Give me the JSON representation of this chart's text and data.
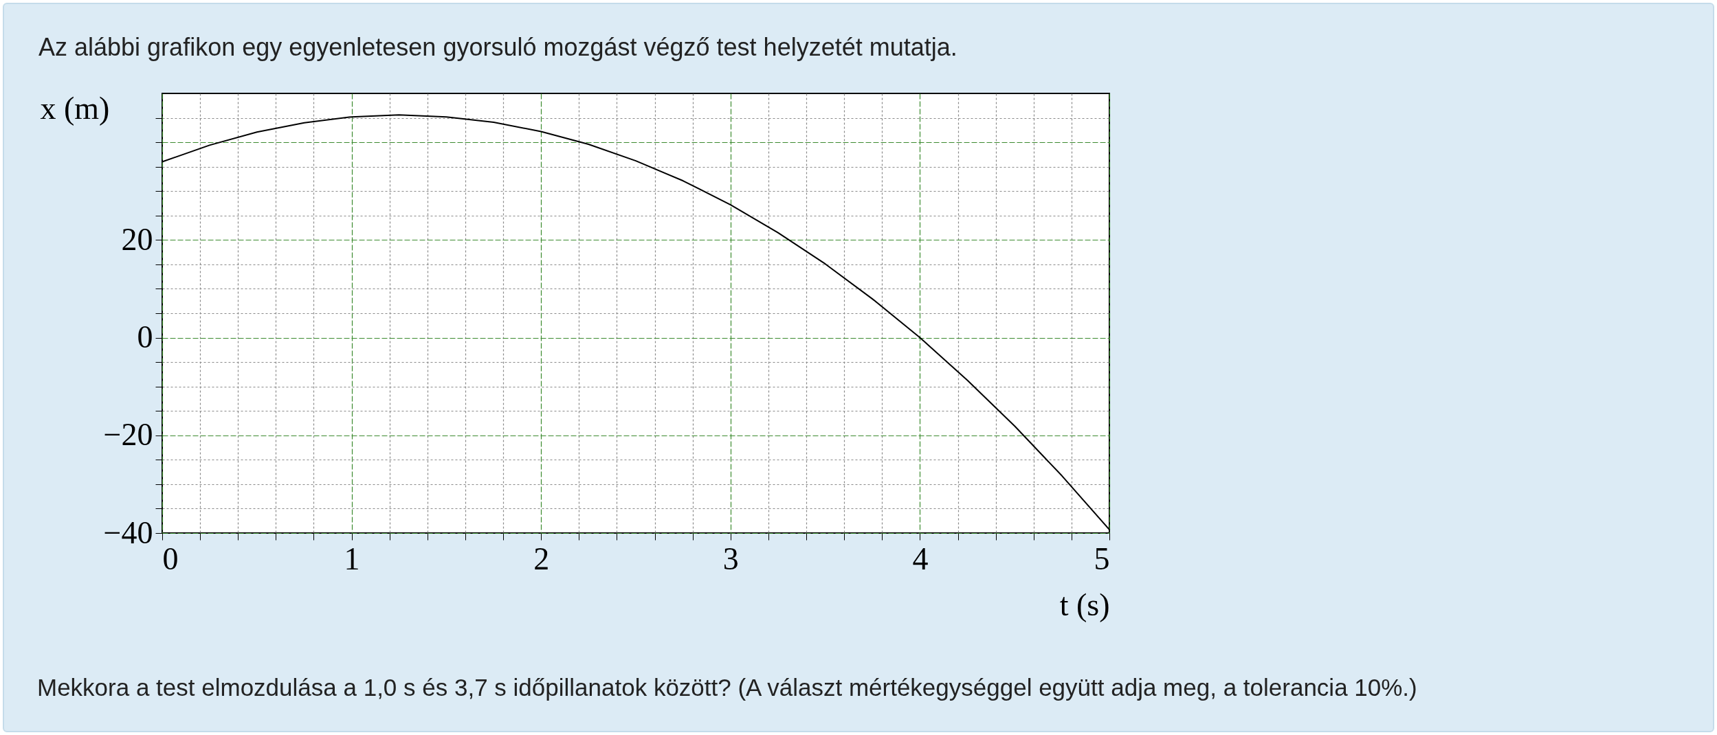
{
  "chart_data": {
    "type": "line",
    "title": "Az alábbi grafikon egy egyenletesen gyorsuló mozgást végző test helyzetét mutatja.",
    "xlabel": "t (s)",
    "ylabel": "x (m)",
    "annotations": [
      "Mekkora a test elmozdulása a 1,0 s és 3,7 s időpillanatok között? (A választ mértékegységgel együtt adja meg, a tolerancia 10%.)"
    ],
    "x": [
      0,
      0.25,
      0.5,
      0.75,
      1,
      1.25,
      1.5,
      1.75,
      2,
      2.25,
      2.5,
      2.75,
      3,
      3.25,
      3.5,
      3.75,
      4,
      4.25,
      4.5,
      4.75,
      5
    ],
    "series": [
      {
        "color": "#000000",
        "values": [
          36,
          39.4,
          42.1,
          44.0,
          45.2,
          45.6,
          45.2,
          44.1,
          42.2,
          39.6,
          36.2,
          32.1,
          27.2,
          21.5,
          15.1,
          7.9,
          0,
          -8.7,
          -18.1,
          -28.3,
          -39.3
        ]
      }
    ],
    "xlim": [
      0,
      5
    ],
    "ylim": [
      -40,
      50
    ],
    "xticks": [
      0,
      {
        "value": 0.2,
        "label": null
      },
      {
        "value": 0.4,
        "label": null
      },
      {
        "value": 0.6,
        "label": null
      },
      {
        "value": 0.8,
        "label": null
      },
      1,
      {
        "value": 1.2,
        "label": null
      },
      {
        "value": 1.4,
        "label": null
      },
      {
        "value": 1.6,
        "label": null
      },
      {
        "value": 1.8,
        "label": null
      },
      2,
      {
        "value": 2.2,
        "label": null
      },
      {
        "value": 2.4,
        "label": null
      },
      {
        "value": 2.6,
        "label": null
      },
      {
        "value": 2.8,
        "label": null
      },
      3,
      {
        "value": 3.2,
        "label": null
      },
      {
        "value": 3.4,
        "label": null
      },
      {
        "value": 3.6,
        "label": null
      },
      {
        "value": 3.8,
        "label": null
      },
      4,
      {
        "value": 4.2,
        "label": null
      },
      {
        "value": 4.4,
        "label": null
      },
      {
        "value": 4.6,
        "label": null
      },
      {
        "value": 4.8,
        "label": null
      },
      5
    ],
    "yticks": [
      {
        "value": -40,
        "label": "−40"
      },
      {
        "value": -35,
        "label": null
      },
      {
        "value": -30,
        "label": null
      },
      {
        "value": -25,
        "label": null
      },
      {
        "value": -20,
        "label": "−20"
      },
      {
        "value": -15,
        "label": null
      },
      {
        "value": -10,
        "label": null
      },
      {
        "value": -5,
        "label": null
      },
      0,
      {
        "value": 5,
        "label": null
      },
      {
        "value": 10,
        "label": null
      },
      {
        "value": 15,
        "label": null
      },
      20,
      {
        "value": 25,
        "label": null
      },
      {
        "value": 30,
        "label": null
      },
      {
        "value": 35,
        "label": null
      },
      {
        "value": 40,
        "label": null
      },
      {
        "value": 45,
        "label": null
      }
    ],
    "grid": true,
    "marker": "none",
    "line_style": "solid"
  }
}
